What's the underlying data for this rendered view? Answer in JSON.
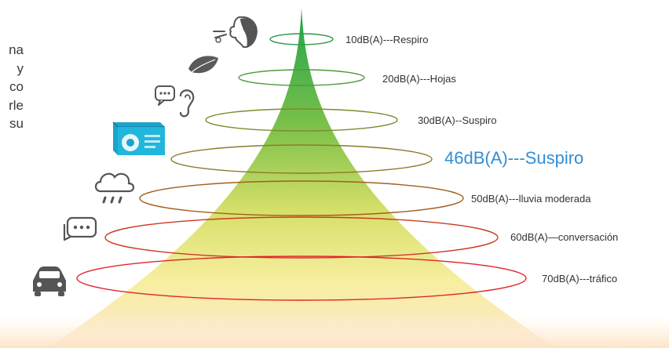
{
  "side_text_fragments": [
    "na",
    "y",
    "co",
    "rle",
    "su"
  ],
  "levels": [
    {
      "label": "10dB(A)---Respiro",
      "icon": "face-breathing-icon",
      "color": "#2e9a48"
    },
    {
      "label": "20dB(A)---Hojas",
      "icon": "leaf-icon",
      "color": "#4e9a3e"
    },
    {
      "label": "30dB(A)--Suspiro",
      "icon": "speech-ear-icon",
      "color": "#7e8a2e"
    },
    {
      "label": "46dB(A)---Suspiro",
      "icon": "heat-pump-icon",
      "color": "#8c7a2a",
      "highlight": true,
      "text_color": "#2f8fd6"
    },
    {
      "label": "50dB(A)---lluvia moderada",
      "icon": "rain-cloud-icon",
      "color": "#a0601e"
    },
    {
      "label": "60dB(A)—conversación",
      "icon": "chat-bubble-icon",
      "color": "#cc3a22"
    },
    {
      "label": "70dB(A)---tráfico",
      "icon": "car-icon",
      "color": "#e0242a"
    }
  ]
}
